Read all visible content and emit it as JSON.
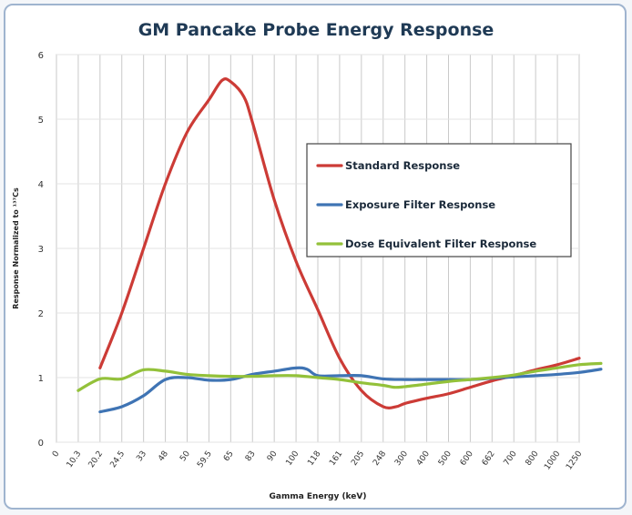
{
  "chart_data": {
    "type": "line",
    "title": "GM Pancake Probe Energy Response",
    "xlabel": "Gamma Energy (keV)",
    "ylabel": "Response Normalized to ¹³⁷Cs",
    "categories": [
      "0",
      "10.3",
      "20.2",
      "24.5",
      "33",
      "48",
      "50",
      "59.5",
      "65",
      "83",
      "90",
      "100",
      "118",
      "161",
      "205",
      "248",
      "300",
      "400",
      "500",
      "600",
      "662",
      "700",
      "800",
      "1000",
      "1250"
    ],
    "ylim": [
      0,
      6
    ],
    "yticks": [
      0,
      1,
      2,
      3,
      4,
      5,
      6
    ],
    "grid": true,
    "legend_position": "upper-right",
    "series": [
      {
        "name": "Standard Response",
        "color": "#cc3b36",
        "points": [
          [
            2,
            1.15
          ],
          [
            3,
            2.0
          ],
          [
            4,
            3.0
          ],
          [
            5,
            4.0
          ],
          [
            6,
            4.8
          ],
          [
            7,
            5.3
          ],
          [
            7.6,
            5.6
          ],
          [
            8,
            5.58
          ],
          [
            8.6,
            5.35
          ],
          [
            9,
            4.95
          ],
          [
            10,
            3.75
          ],
          [
            11,
            2.8
          ],
          [
            12,
            2.05
          ],
          [
            13,
            1.3
          ],
          [
            14,
            0.8
          ],
          [
            15,
            0.55
          ],
          [
            15.6,
            0.55
          ],
          [
            16,
            0.6
          ],
          [
            17,
            0.68
          ],
          [
            18,
            0.75
          ],
          [
            19,
            0.85
          ],
          [
            20,
            0.95
          ],
          [
            21,
            1.03
          ],
          [
            22,
            1.12
          ],
          [
            23,
            1.2
          ],
          [
            24,
            1.3
          ]
        ]
      },
      {
        "name": "Exposure Filter Response",
        "color": "#3f74b4",
        "points": [
          [
            2,
            0.47
          ],
          [
            3,
            0.55
          ],
          [
            4,
            0.72
          ],
          [
            5,
            0.97
          ],
          [
            6,
            1.0
          ],
          [
            7,
            0.96
          ],
          [
            8,
            0.97
          ],
          [
            9,
            1.05
          ],
          [
            10,
            1.1
          ],
          [
            11,
            1.15
          ],
          [
            11.5,
            1.13
          ],
          [
            12,
            1.03
          ],
          [
            13,
            1.03
          ],
          [
            14,
            1.03
          ],
          [
            15,
            0.98
          ],
          [
            16,
            0.97
          ],
          [
            17,
            0.97
          ],
          [
            18,
            0.97
          ],
          [
            19,
            0.97
          ],
          [
            20,
            0.99
          ],
          [
            21,
            1.01
          ],
          [
            22,
            1.03
          ],
          [
            23,
            1.05
          ],
          [
            24,
            1.08
          ],
          [
            25,
            1.13
          ]
        ]
      },
      {
        "name": "Dose Equivalent Filter Response",
        "color": "#93c13a",
        "points": [
          [
            1,
            0.8
          ],
          [
            2,
            0.98
          ],
          [
            3,
            0.98
          ],
          [
            4,
            1.12
          ],
          [
            5,
            1.1
          ],
          [
            6,
            1.05
          ],
          [
            7,
            1.03
          ],
          [
            8,
            1.02
          ],
          [
            9,
            1.02
          ],
          [
            10,
            1.03
          ],
          [
            11,
            1.03
          ],
          [
            12,
            1.0
          ],
          [
            13,
            0.97
          ],
          [
            14,
            0.92
          ],
          [
            15,
            0.88
          ],
          [
            15.5,
            0.85
          ],
          [
            16,
            0.86
          ],
          [
            17,
            0.9
          ],
          [
            18,
            0.94
          ],
          [
            19,
            0.97
          ],
          [
            20,
            1.0
          ],
          [
            21,
            1.04
          ],
          [
            22,
            1.1
          ],
          [
            23,
            1.15
          ],
          [
            24,
            1.2
          ],
          [
            25,
            1.22
          ]
        ]
      }
    ]
  }
}
